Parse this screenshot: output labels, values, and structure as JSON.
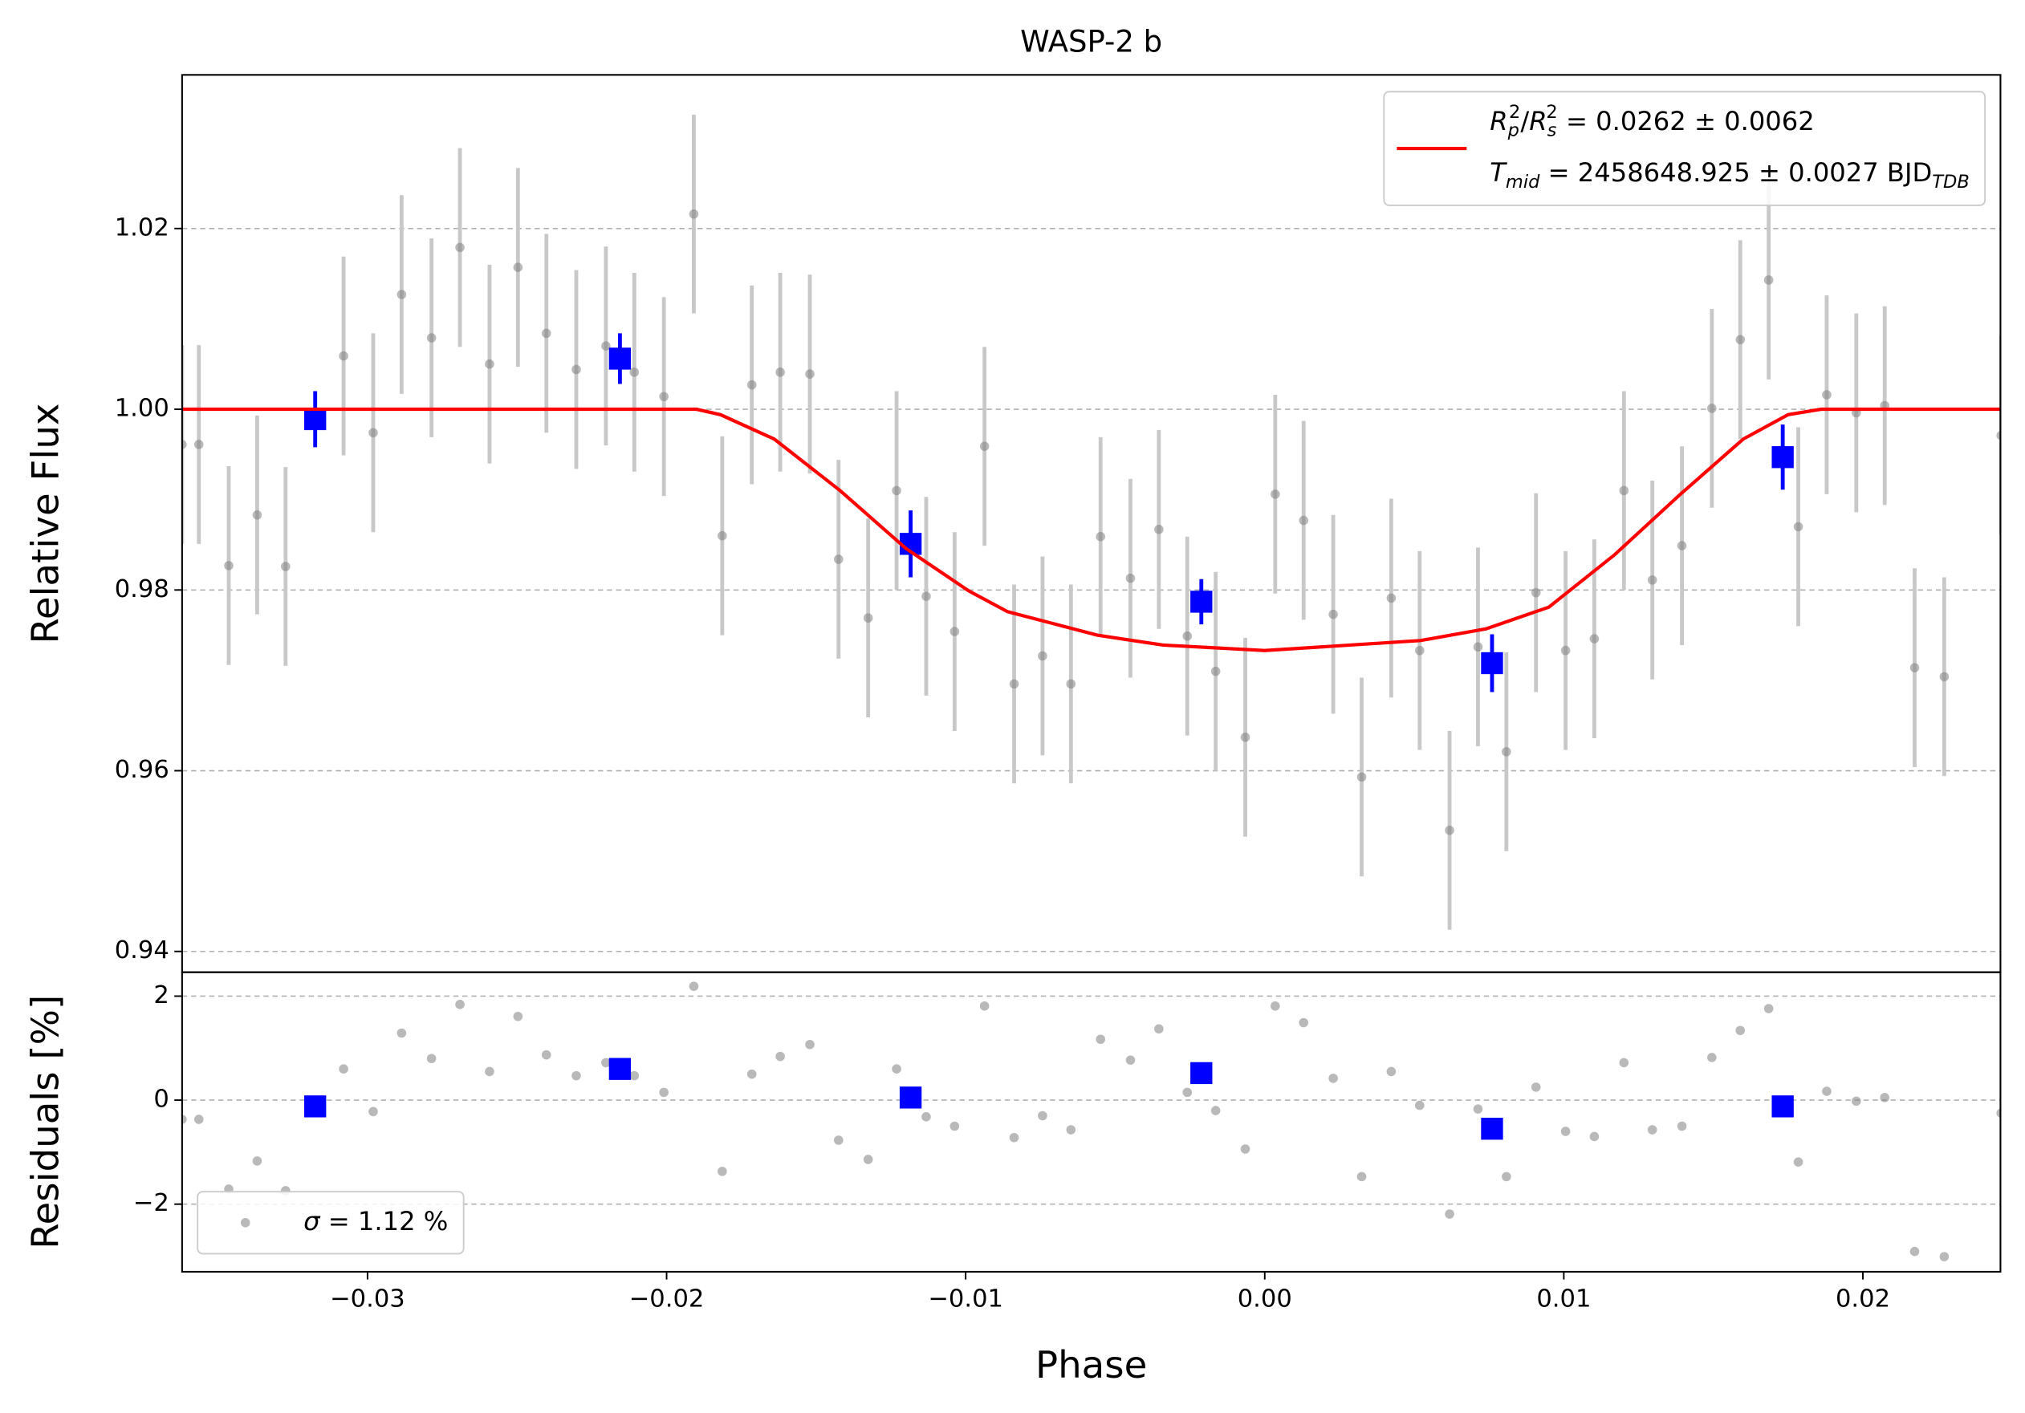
{
  "chart_data": [
    {
      "type": "scatter",
      "title": "WASP-2 b",
      "ylabel": "Relative Flux",
      "xlim": [
        -0.0362,
        0.0246
      ],
      "ylim": [
        0.9377,
        1.037
      ],
      "yticks": [
        0.94,
        0.96,
        0.98,
        {
          "value": 1.0,
          "label": "1.00"
        },
        1.02
      ],
      "grid": true,
      "legend": "upper right",
      "series": [
        {
          "color": "#808080",
          "marker": "circle",
          "yerr": 0.011,
          "x": [
            -0.0362,
            -0.03564,
            -0.03464,
            -0.03369,
            -0.03274,
            -0.0308,
            -0.02981,
            -0.02886,
            -0.02786,
            -0.02691,
            -0.02592,
            -0.02497,
            -0.02402,
            -0.02302,
            -0.02203,
            -0.02108,
            -0.02009,
            -0.01909,
            -0.01814,
            -0.01715,
            -0.0162,
            -0.01521,
            -0.01425,
            -0.01326,
            -0.01231,
            -0.01132,
            -0.01037,
            -0.00937,
            -0.00838,
            -0.00743,
            -0.00648,
            -0.00549,
            -0.00449,
            -0.00354,
            -0.00259,
            -0.00164,
            -0.00065,
            0.00035,
            0.0013,
            0.00229,
            0.00324,
            0.00423,
            0.00518,
            0.00618,
            0.00713,
            0.00808,
            0.00907,
            0.01006,
            0.01102,
            0.01201,
            0.01296,
            0.01395,
            0.01495,
            0.0159,
            0.01685,
            0.01784,
            0.01879,
            0.01978,
            0.02073,
            0.02173,
            0.02272,
            0.02462
          ],
          "values": [
            0.9961,
            0.9961,
            0.9827,
            0.9883,
            0.9826,
            1.0059,
            0.9974,
            1.0127,
            1.0079,
            1.0179,
            1.005,
            1.0157,
            1.0084,
            1.0044,
            1.007,
            1.0041,
            1.0014,
            1.0216,
            0.986,
            1.0027,
            1.0041,
            1.0039,
            0.9834,
            0.9769,
            0.991,
            0.9793,
            0.9754,
            0.9959,
            0.9696,
            0.9727,
            0.9696,
            0.9859,
            0.9813,
            0.9867,
            0.9749,
            0.971,
            0.9637,
            0.9906,
            0.9877,
            0.9773,
            0.9593,
            0.9791,
            0.9733,
            0.9534,
            0.9737,
            0.9621,
            0.9797,
            0.9733,
            0.9746,
            0.991,
            0.9811,
            0.9849,
            1.0001,
            1.0077,
            1.0143,
            0.987,
            1.0016,
            0.9996,
            1.0004,
            0.9714,
            0.9704,
            0.9971
          ]
        },
        {
          "color": "#0000ff",
          "marker": "square",
          "x": [
            -0.03175,
            -0.02156,
            -0.01184,
            -0.00212,
            0.0076,
            0.01732
          ],
          "values": [
            0.9989,
            1.0056,
            0.9851,
            0.9787,
            0.9719,
            0.9947
          ],
          "yerr": [
            0.0031,
            0.0028,
            0.0037,
            0.0025,
            0.0032,
            0.0036
          ]
        },
        {
          "type": "line",
          "color": "#ff0000",
          "name": [
            [
              [
                "R",
                "i"
              ],
              [
                "p",
                "sub i"
              ],
              [
                "2",
                "sup"
              ],
              [
                "/",
                ""
              ],
              [
                "R",
                "i"
              ],
              [
                "s",
                "sub i"
              ],
              [
                "2",
                "sup"
              ],
              [
                " = 0.0262 ± 0.0062",
                ""
              ]
            ],
            [
              [
                "T",
                "i"
              ],
              [
                "mid",
                "sub i"
              ],
              [
                " = 2458648.925 ± 0.0027 BJD",
                ""
              ],
              [
                "TDB",
                "sub i"
              ]
            ]
          ],
          "x": [
            -0.0362,
            -0.019,
            -0.0182,
            -0.0164,
            -0.0142,
            -0.012,
            -0.0099,
            -0.0086,
            -0.0056,
            -0.0034,
            0,
            0.0052,
            0.0074,
            0.0095,
            0.0117,
            0.0139,
            0.016,
            0.0175,
            0.0186,
            0.0246
          ],
          "values": [
            1,
            1,
            0.9994,
            0.9967,
            0.991,
            0.9846,
            0.9799,
            0.9776,
            0.975,
            0.9739,
            0.9733,
            0.9744,
            0.9757,
            0.9781,
            0.9839,
            0.9906,
            0.9967,
            0.9994,
            1,
            1
          ]
        }
      ]
    },
    {
      "type": "scatter",
      "xlabel": "Phase",
      "ylabel": "Residuals [%]",
      "xlim": [
        -0.0362,
        0.0246
      ],
      "ylim": [
        -3.3,
        2.46
      ],
      "xticks": [
        {
          "value": -0.03,
          "label": "−0.03"
        },
        {
          "value": -0.02,
          "label": "−0.02"
        },
        {
          "value": -0.01,
          "label": "−0.01"
        },
        {
          "value": 0,
          "label": "0.00"
        },
        0.01,
        0.02
      ],
      "yticks": [
        {
          "value": -2,
          "label": "−2"
        },
        0,
        2
      ],
      "grid": true,
      "legend": "lower left",
      "series": [
        {
          "name": [
            [
              [
                "σ",
                "i"
              ],
              [
                " = 1.12 %",
                ""
              ]
            ]
          ],
          "color": "#808080",
          "marker": "circle",
          "x": [
            -0.0362,
            -0.03564,
            -0.03464,
            -0.03369,
            -0.03274,
            -0.0308,
            -0.02981,
            -0.02886,
            -0.02786,
            -0.02691,
            -0.02592,
            -0.02497,
            -0.02402,
            -0.02302,
            -0.02203,
            -0.02108,
            -0.02009,
            -0.01909,
            -0.01814,
            -0.01715,
            -0.0162,
            -0.01521,
            -0.01425,
            -0.01326,
            -0.01231,
            -0.01132,
            -0.01037,
            -0.00937,
            -0.00838,
            -0.00743,
            -0.00648,
            -0.00549,
            -0.00449,
            -0.00354,
            -0.00259,
            -0.00164,
            -0.00065,
            0.00035,
            0.0013,
            0.00229,
            0.00324,
            0.00423,
            0.00518,
            0.00618,
            0.00713,
            0.00808,
            0.00907,
            0.01006,
            0.01102,
            0.01201,
            0.01296,
            0.01395,
            0.01495,
            0.0159,
            0.01685,
            0.01784,
            0.01879,
            0.01978,
            0.02073,
            0.02173,
            0.02272,
            0.02462
          ],
          "values": [
            -0.37,
            -0.37,
            -1.71,
            -1.17,
            -1.74,
            0.6,
            -0.22,
            1.29,
            0.8,
            1.84,
            0.55,
            1.61,
            0.87,
            0.47,
            0.72,
            0.47,
            0.15,
            2.19,
            -1.37,
            0.5,
            0.84,
            1.07,
            -0.77,
            -1.14,
            0.6,
            -0.32,
            -0.5,
            1.81,
            -0.72,
            -0.3,
            -0.57,
            1.17,
            0.77,
            1.37,
            0.15,
            -0.2,
            -0.94,
            1.81,
            1.49,
            0.42,
            -1.47,
            0.55,
            -0.1,
            -2.19,
            -0.17,
            -1.47,
            0.25,
            -0.6,
            -0.7,
            0.72,
            -0.57,
            -0.5,
            0.82,
            1.34,
            1.76,
            -1.19,
            0.17,
            -0.02,
            0.05,
            -2.91,
            -3.01,
            -0.25
          ]
        },
        {
          "color": "#0000ff",
          "marker": "square",
          "x": [
            -0.03175,
            -0.02156,
            -0.01184,
            -0.00212,
            0.0076,
            0.01732
          ],
          "values": [
            -0.12,
            0.6,
            0.05,
            0.52,
            -0.55,
            -0.12
          ]
        }
      ]
    }
  ]
}
